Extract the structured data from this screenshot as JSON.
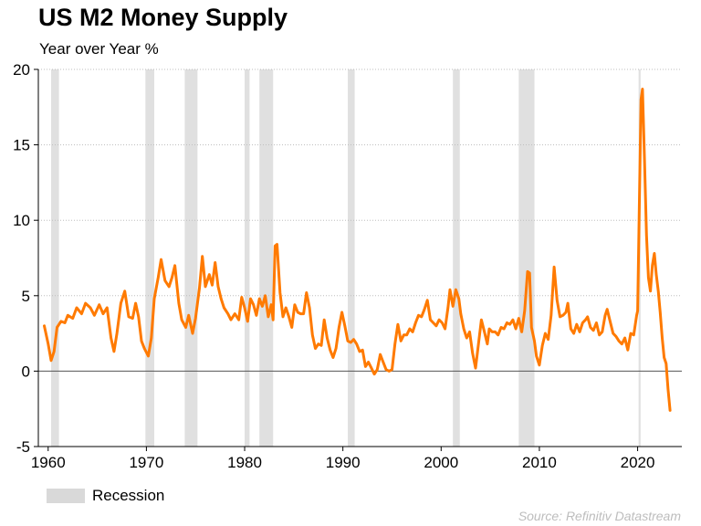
{
  "chart_data": {
    "type": "line",
    "title": "US M2 Money Supply",
    "subtitle": "Year over Year %",
    "xlabel": "",
    "ylabel": "",
    "xlim": [
      1959,
      2024.5
    ],
    "ylim": [
      -5,
      20
    ],
    "x_ticks": [
      {
        "value": 1960,
        "label": "1960"
      },
      {
        "value": 1970,
        "label": "1970"
      },
      {
        "value": 1980,
        "label": "1980"
      },
      {
        "value": 1990,
        "label": "1990"
      },
      {
        "value": 2000,
        "label": "2000"
      },
      {
        "value": 2010,
        "label": "2010"
      },
      {
        "value": 2020,
        "label": "2020"
      }
    ],
    "y_ticks": [
      {
        "value": 20,
        "label": "20"
      },
      {
        "value": 15,
        "label": "15"
      },
      {
        "value": 10,
        "label": "10"
      },
      {
        "value": 5,
        "label": "5"
      },
      {
        "value": 0,
        "label": "0"
      },
      {
        "value": -5,
        "label": "-5"
      }
    ],
    "grid": "horizontal dotted",
    "legend": {
      "placement": "bottom-left",
      "label": "Recession",
      "color": "#d9d9d9"
    },
    "source": "Source: Refinitiv Datastream",
    "colors": {
      "series": "#ff7a00",
      "recession": "#e0e0e0",
      "zero_line": "#555555"
    },
    "recessions": [
      [
        1960.3,
        1961.1
      ],
      [
        1969.9,
        1970.8
      ],
      [
        1973.9,
        1975.2
      ],
      [
        1980.0,
        1980.5
      ],
      [
        1981.5,
        1982.9
      ],
      [
        1990.5,
        1991.2
      ],
      [
        2001.2,
        2001.9
      ],
      [
        2007.9,
        2009.5
      ],
      [
        2020.1,
        2020.3
      ]
    ],
    "series": [
      {
        "values": [
          [
            1959.6,
            3.0
          ],
          [
            1960.0,
            1.8
          ],
          [
            1960.3,
            0.7
          ],
          [
            1960.6,
            1.3
          ],
          [
            1960.9,
            2.9
          ],
          [
            1961.3,
            3.3
          ],
          [
            1961.7,
            3.2
          ],
          [
            1962.0,
            3.7
          ],
          [
            1962.5,
            3.5
          ],
          [
            1962.9,
            4.2
          ],
          [
            1963.4,
            3.8
          ],
          [
            1963.8,
            4.5
          ],
          [
            1964.3,
            4.2
          ],
          [
            1964.7,
            3.7
          ],
          [
            1965.2,
            4.4
          ],
          [
            1965.6,
            3.8
          ],
          [
            1966.0,
            4.2
          ],
          [
            1966.4,
            2.2
          ],
          [
            1966.7,
            1.3
          ],
          [
            1967.0,
            2.5
          ],
          [
            1967.4,
            4.5
          ],
          [
            1967.8,
            5.3
          ],
          [
            1968.2,
            3.6
          ],
          [
            1968.6,
            3.5
          ],
          [
            1968.9,
            4.5
          ],
          [
            1969.2,
            3.6
          ],
          [
            1969.5,
            2.0
          ],
          [
            1969.8,
            1.5
          ],
          [
            1970.2,
            1.0
          ],
          [
            1970.5,
            2.2
          ],
          [
            1970.8,
            4.8
          ],
          [
            1971.2,
            6.2
          ],
          [
            1971.5,
            7.4
          ],
          [
            1971.9,
            6.0
          ],
          [
            1972.3,
            5.6
          ],
          [
            1972.6,
            6.2
          ],
          [
            1972.9,
            7.0
          ],
          [
            1973.3,
            4.5
          ],
          [
            1973.6,
            3.4
          ],
          [
            1974.0,
            2.9
          ],
          [
            1974.3,
            3.7
          ],
          [
            1974.7,
            2.5
          ],
          [
            1975.0,
            3.5
          ],
          [
            1975.4,
            5.5
          ],
          [
            1975.7,
            7.6
          ],
          [
            1976.0,
            5.6
          ],
          [
            1976.4,
            6.4
          ],
          [
            1976.7,
            5.7
          ],
          [
            1977.0,
            7.2
          ],
          [
            1977.3,
            5.6
          ],
          [
            1977.6,
            4.8
          ],
          [
            1977.9,
            4.2
          ],
          [
            1978.3,
            3.8
          ],
          [
            1978.6,
            3.4
          ],
          [
            1979.0,
            3.8
          ],
          [
            1979.4,
            3.4
          ],
          [
            1979.7,
            4.9
          ],
          [
            1980.0,
            4.2
          ],
          [
            1980.3,
            3.3
          ],
          [
            1980.6,
            4.8
          ],
          [
            1980.9,
            4.4
          ],
          [
            1981.2,
            3.7
          ],
          [
            1981.5,
            4.8
          ],
          [
            1981.8,
            4.3
          ],
          [
            1982.1,
            5.0
          ],
          [
            1982.4,
            3.6
          ],
          [
            1982.7,
            4.4
          ],
          [
            1982.9,
            3.4
          ],
          [
            1983.1,
            8.3
          ],
          [
            1983.3,
            8.4
          ],
          [
            1983.6,
            5.2
          ],
          [
            1983.9,
            3.6
          ],
          [
            1984.2,
            4.2
          ],
          [
            1984.5,
            3.6
          ],
          [
            1984.8,
            2.9
          ],
          [
            1985.1,
            4.4
          ],
          [
            1985.4,
            3.9
          ],
          [
            1985.7,
            3.8
          ],
          [
            1986.0,
            3.8
          ],
          [
            1986.3,
            5.2
          ],
          [
            1986.6,
            4.2
          ],
          [
            1986.9,
            2.4
          ],
          [
            1987.2,
            1.5
          ],
          [
            1987.5,
            1.8
          ],
          [
            1987.8,
            1.7
          ],
          [
            1988.1,
            3.4
          ],
          [
            1988.4,
            2.2
          ],
          [
            1988.7,
            1.4
          ],
          [
            1989.0,
            0.9
          ],
          [
            1989.3,
            1.5
          ],
          [
            1989.6,
            2.9
          ],
          [
            1989.9,
            3.9
          ],
          [
            1990.2,
            3.0
          ],
          [
            1990.5,
            2.0
          ],
          [
            1990.8,
            1.9
          ],
          [
            1991.1,
            2.1
          ],
          [
            1991.4,
            1.8
          ],
          [
            1991.7,
            1.3
          ],
          [
            1992.0,
            1.4
          ],
          [
            1992.3,
            0.3
          ],
          [
            1992.6,
            0.6
          ],
          [
            1992.9,
            0.2
          ],
          [
            1993.2,
            -0.2
          ],
          [
            1993.5,
            0.1
          ],
          [
            1993.8,
            1.1
          ],
          [
            1994.1,
            0.6
          ],
          [
            1994.4,
            0.1
          ],
          [
            1994.7,
            0.0
          ],
          [
            1995.0,
            0.1
          ],
          [
            1995.3,
            1.8
          ],
          [
            1995.6,
            3.1
          ],
          [
            1995.9,
            2.0
          ],
          [
            1996.2,
            2.4
          ],
          [
            1996.5,
            2.4
          ],
          [
            1996.8,
            2.8
          ],
          [
            1997.1,
            2.6
          ],
          [
            1997.4,
            3.2
          ],
          [
            1997.7,
            3.7
          ],
          [
            1998.0,
            3.6
          ],
          [
            1998.3,
            4.1
          ],
          [
            1998.6,
            4.7
          ],
          [
            1998.9,
            3.4
          ],
          [
            1999.2,
            3.2
          ],
          [
            1999.5,
            3.0
          ],
          [
            1999.8,
            3.4
          ],
          [
            2000.1,
            3.2
          ],
          [
            2000.4,
            2.8
          ],
          [
            2000.7,
            4.2
          ],
          [
            2000.9,
            5.4
          ],
          [
            2001.2,
            4.3
          ],
          [
            2001.5,
            5.4
          ],
          [
            2001.8,
            4.8
          ],
          [
            2002.0,
            3.8
          ],
          [
            2002.3,
            2.8
          ],
          [
            2002.6,
            2.2
          ],
          [
            2002.9,
            2.6
          ],
          [
            2003.2,
            1.2
          ],
          [
            2003.5,
            0.2
          ],
          [
            2003.8,
            1.8
          ],
          [
            2004.1,
            3.4
          ],
          [
            2004.4,
            2.6
          ],
          [
            2004.7,
            1.8
          ],
          [
            2004.9,
            2.8
          ],
          [
            2005.2,
            2.6
          ],
          [
            2005.5,
            2.6
          ],
          [
            2005.8,
            2.4
          ],
          [
            2006.1,
            2.9
          ],
          [
            2006.4,
            2.8
          ],
          [
            2006.7,
            3.2
          ],
          [
            2007.0,
            3.1
          ],
          [
            2007.3,
            3.4
          ],
          [
            2007.6,
            2.8
          ],
          [
            2007.9,
            3.5
          ],
          [
            2008.2,
            2.6
          ],
          [
            2008.5,
            4.0
          ],
          [
            2008.8,
            6.6
          ],
          [
            2009.0,
            6.5
          ],
          [
            2009.2,
            2.9
          ],
          [
            2009.5,
            2.0
          ],
          [
            2009.7,
            1.0
          ],
          [
            2010.0,
            0.4
          ],
          [
            2010.3,
            1.7
          ],
          [
            2010.6,
            2.5
          ],
          [
            2010.9,
            2.1
          ],
          [
            2011.2,
            3.7
          ],
          [
            2011.5,
            6.9
          ],
          [
            2011.8,
            4.7
          ],
          [
            2012.1,
            3.6
          ],
          [
            2012.4,
            3.7
          ],
          [
            2012.7,
            3.9
          ],
          [
            2012.9,
            4.5
          ],
          [
            2013.2,
            2.8
          ],
          [
            2013.5,
            2.5
          ],
          [
            2013.8,
            3.1
          ],
          [
            2014.1,
            2.6
          ],
          [
            2014.4,
            3.2
          ],
          [
            2014.7,
            3.4
          ],
          [
            2014.9,
            3.6
          ],
          [
            2015.2,
            2.9
          ],
          [
            2015.5,
            2.7
          ],
          [
            2015.8,
            3.2
          ],
          [
            2016.1,
            2.4
          ],
          [
            2016.4,
            2.6
          ],
          [
            2016.7,
            3.7
          ],
          [
            2016.9,
            4.1
          ],
          [
            2017.2,
            3.3
          ],
          [
            2017.5,
            2.5
          ],
          [
            2017.8,
            2.3
          ],
          [
            2018.1,
            2.0
          ],
          [
            2018.4,
            1.8
          ],
          [
            2018.7,
            2.2
          ],
          [
            2019.0,
            1.4
          ],
          [
            2019.3,
            2.5
          ],
          [
            2019.6,
            2.4
          ],
          [
            2019.9,
            3.7
          ],
          [
            2020.0,
            4.0
          ],
          [
            2020.2,
            12.0
          ],
          [
            2020.35,
            18.0
          ],
          [
            2020.5,
            18.7
          ],
          [
            2020.7,
            14.0
          ],
          [
            2020.9,
            9.0
          ],
          [
            2021.1,
            6.2
          ],
          [
            2021.3,
            5.3
          ],
          [
            2021.5,
            7.0
          ],
          [
            2021.7,
            7.8
          ],
          [
            2021.9,
            6.4
          ],
          [
            2022.1,
            5.3
          ],
          [
            2022.3,
            3.9
          ],
          [
            2022.5,
            2.2
          ],
          [
            2022.7,
            0.9
          ],
          [
            2022.9,
            0.5
          ],
          [
            2023.1,
            -1.2
          ],
          [
            2023.3,
            -2.6
          ]
        ]
      }
    ]
  }
}
